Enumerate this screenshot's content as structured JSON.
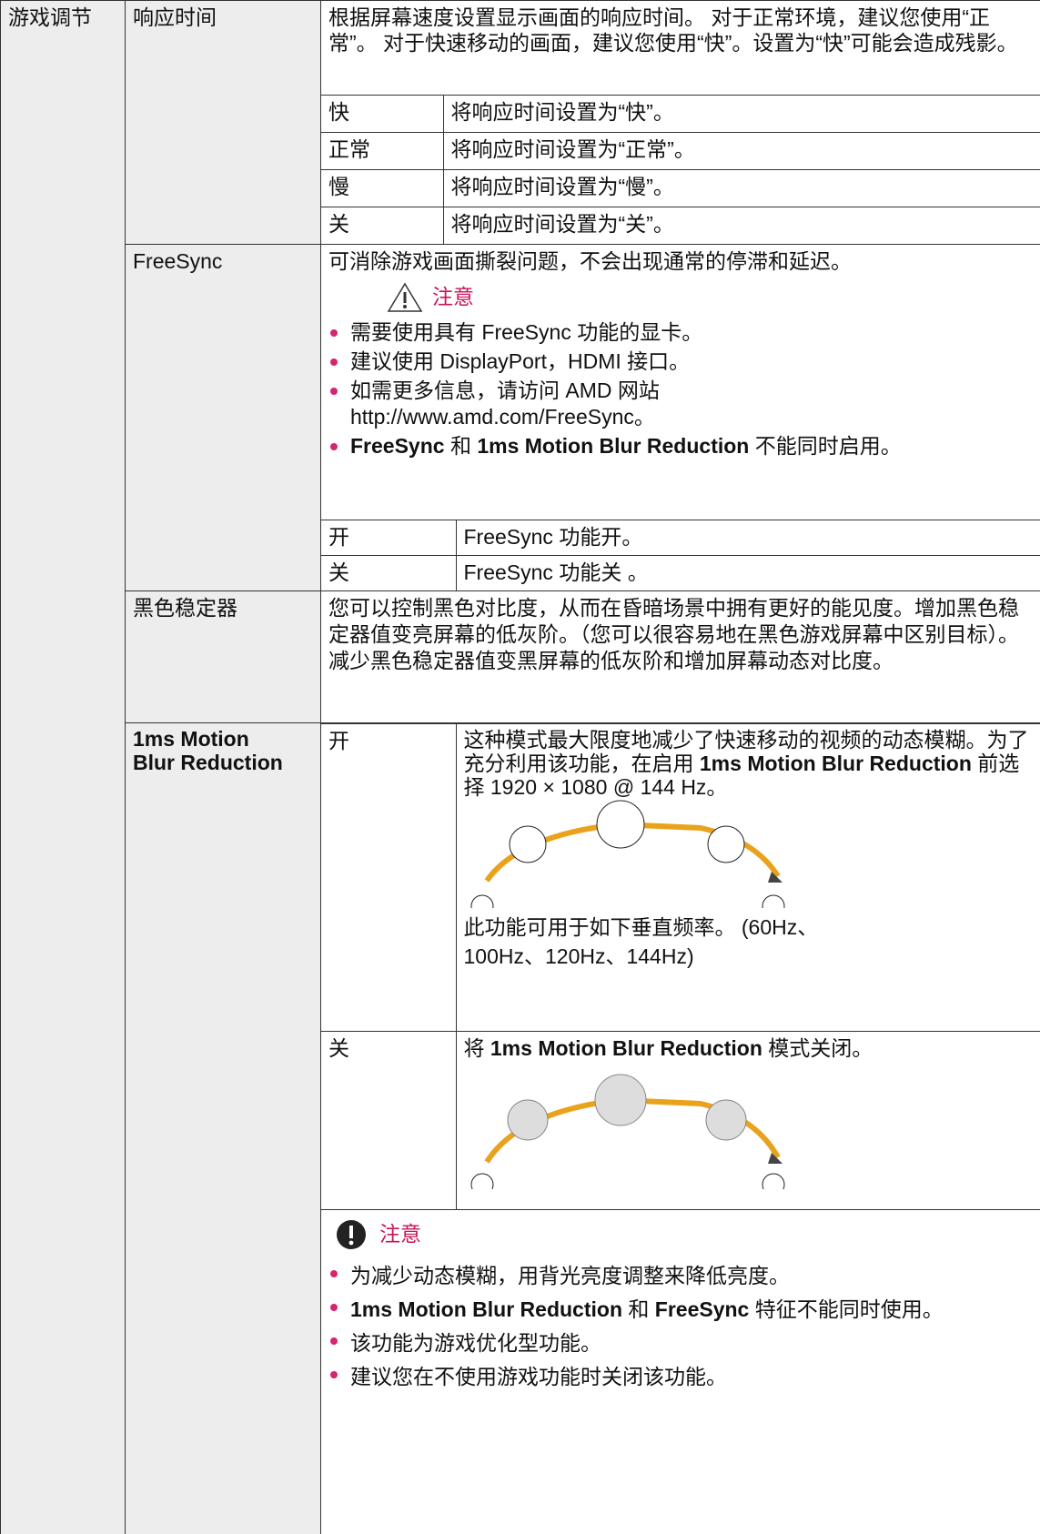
{
  "section": "游戏调节",
  "items": [
    {
      "name": "响应时间",
      "description": "根据屏幕速度设置显示画面的响应时间。 对于正常环境，建议您使用“正常”。 对于快速移动的画面，建议您使用“快”。设置为“快”可能会造成残影。",
      "options": [
        {
          "label": "快",
          "text": "将响应时间设置为“快”。"
        },
        {
          "label": "正常",
          "text": "将响应时间设置为“正常”。"
        },
        {
          "label": "慢",
          "text": "将响应时间设置为“慢”。"
        },
        {
          "label": "关",
          "text": "将响应时间设置为“关”。"
        }
      ]
    },
    {
      "name": "FreeSync",
      "description": "可消除游戏画面撕裂问题，不会出现通常的停滞和延迟。",
      "note_title": "注意",
      "notes": [
        [
          "需要使用具有 FreeSync 功能的显卡。"
        ],
        [
          "建议使用 DisplayPort，HDMI 接口。"
        ],
        [
          "如需更多信息，请访问 AMD 网站 http://www.amd.com/FreeSync。"
        ],
        [
          "FreeSync",
          " 和 ",
          "1ms Motion Blur Reduction",
          " 不能同时启用。"
        ]
      ],
      "options": [
        {
          "label": "开",
          "text": "FreeSync 功能开。"
        },
        {
          "label": "关",
          "text": "FreeSync 功能关 。"
        }
      ]
    },
    {
      "name": "黑色稳定器",
      "description": "您可以控制黑色对比度，从而在昏暗场景中拥有更好的能见度。增加黑色稳定器值变亮屏幕的低灰阶。（您可以很容易地在黑色游戏屏幕中区别目标）。减少黑色稳定器值变黑屏幕的低灰阶和增加屏幕动态对比度。"
    },
    {
      "name": "1ms Motion Blur Reduction",
      "options": [
        {
          "label": "开",
          "text": [
            "这种模式最大限度地减少了快速移动的视频的动态模糊。为了充分利用该功能，在启用 ",
            "1ms Motion Blur Reduction",
            " 前选择 1920 × 1080 @ 144 Hz。"
          ],
          "extra": "此功能可用于如下垂直频率。 (60Hz、100Hz、120Hz、144Hz)"
        },
        {
          "label": "关",
          "text": [
            "将 ",
            "1ms Motion Blur Reduction",
            " 模式关闭。"
          ]
        }
      ],
      "note_title": "注意",
      "notes": [
        [
          "为减少动态模糊，用背光亮度调整来降低亮度。"
        ],
        [
          "1ms Motion Blur Reduction",
          " 和 ",
          "FreeSync",
          " 特征不能同时使用。"
        ],
        [
          "该功能为游戏优化型功能。"
        ],
        [
          "建议您在不使用游戏功能时关闭该功能。"
        ]
      ]
    }
  ]
}
